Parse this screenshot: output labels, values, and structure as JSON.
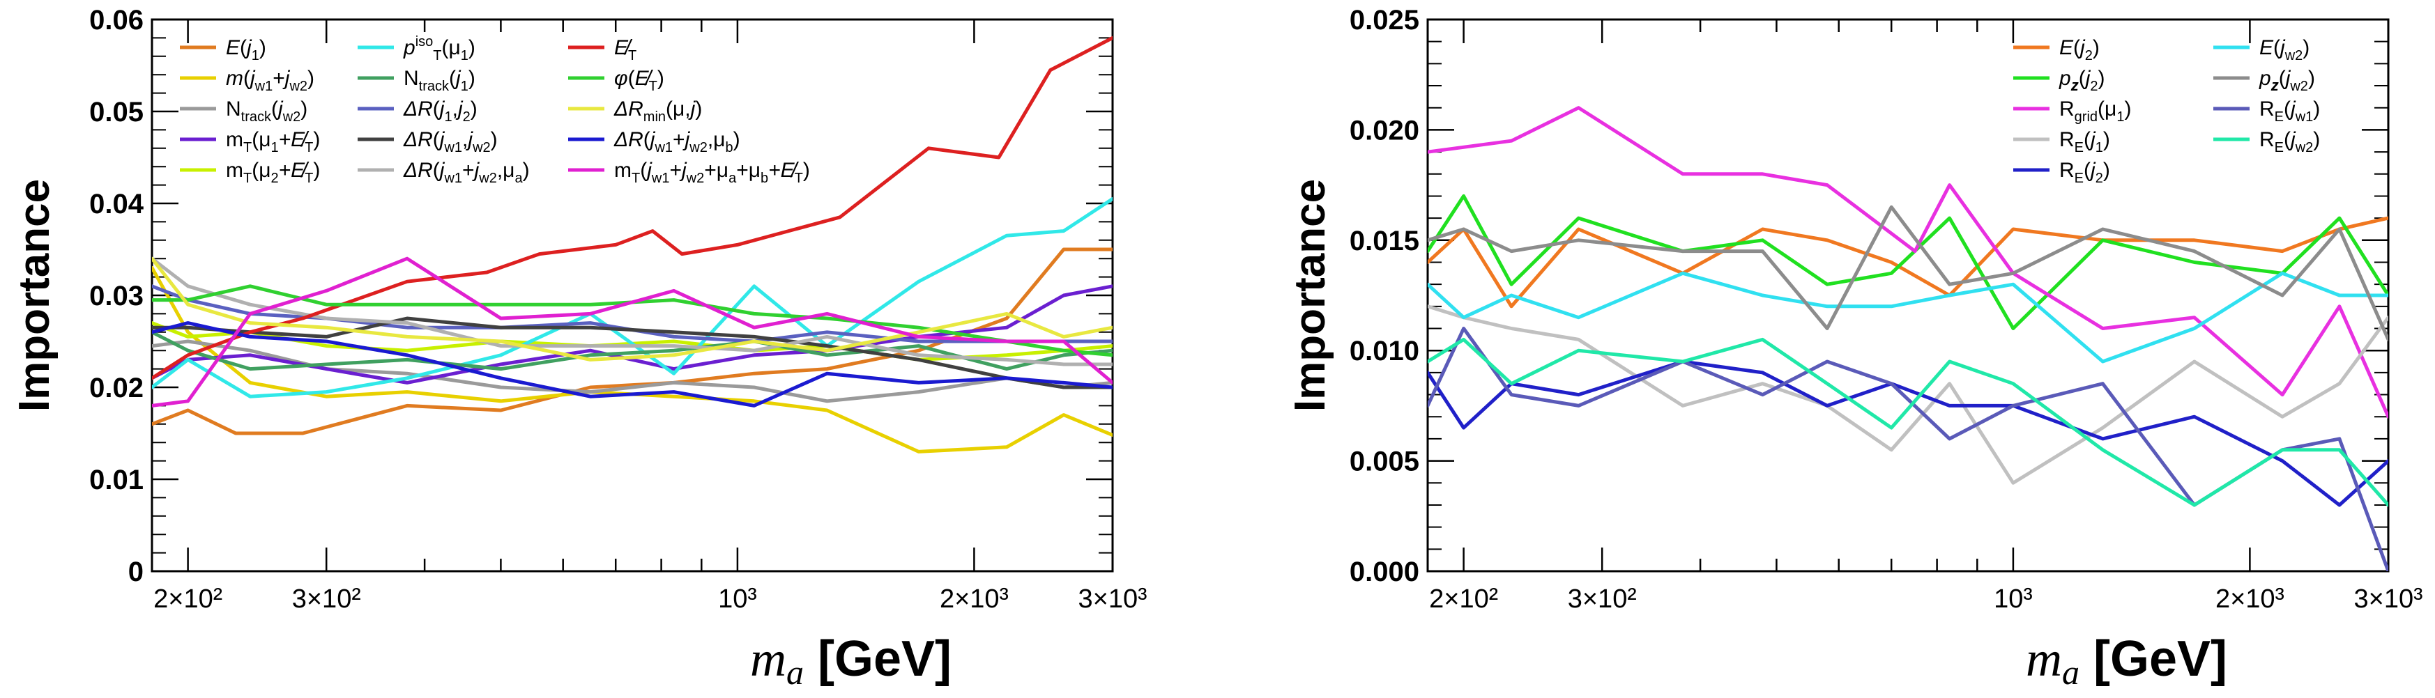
{
  "chart_data": [
    {
      "type": "line",
      "title": "",
      "xlabel": "m_a [GeV]",
      "ylabel": "Importance",
      "xscale": "log",
      "xlim": [
        180,
        3000
      ],
      "ylim": [
        0,
        0.06
      ],
      "yticks": [
        "0",
        "0.01",
        "0.02",
        "0.03",
        "0.04",
        "0.05",
        "0.06"
      ],
      "xticks": [
        {
          "value": 200,
          "label": "2×10²"
        },
        {
          "value": 300,
          "label": "3×10²"
        },
        {
          "value": 1000,
          "label": "10³"
        },
        {
          "value": 2000,
          "label": "2×10³"
        },
        {
          "value": 3000,
          "label": "3×10³"
        }
      ],
      "grid": false,
      "legend": "top-left, 3 columns",
      "series": [
        {
          "name": "E(j1)",
          "color": "#e07b20",
          "x": [
            180,
            200,
            230,
            280,
            380,
            500,
            650,
            830,
            1050,
            1300,
            1700,
            2200,
            2600,
            3000
          ],
          "y": [
            0.016,
            0.0175,
            0.015,
            0.015,
            0.018,
            0.0175,
            0.02,
            0.0205,
            0.0215,
            0.022,
            0.024,
            0.0275,
            0.035,
            0.035
          ]
        },
        {
          "name": "m(jw1+jw2)",
          "color": "#e8d000",
          "x": [
            180,
            200,
            240,
            300,
            380,
            500,
            650,
            830,
            1050,
            1300,
            1700,
            2200,
            2600,
            3000
          ],
          "y": [
            0.033,
            0.026,
            0.0205,
            0.019,
            0.0195,
            0.0185,
            0.0195,
            0.019,
            0.0185,
            0.0175,
            0.013,
            0.0135,
            0.017,
            0.0148
          ]
        },
        {
          "name": "Ntrack(jw2)",
          "color": "#9a9a9a",
          "x": [
            180,
            200,
            240,
            300,
            380,
            500,
            650,
            830,
            1050,
            1300,
            1700,
            2200,
            2600,
            3000
          ],
          "y": [
            0.0245,
            0.025,
            0.024,
            0.022,
            0.0215,
            0.02,
            0.0195,
            0.0205,
            0.02,
            0.0185,
            0.0195,
            0.021,
            0.02,
            0.0205
          ]
        },
        {
          "name": "mT(μ1+E̸T)",
          "color": "#6a1fd0",
          "x": [
            180,
            200,
            240,
            300,
            380,
            500,
            650,
            830,
            1050,
            1300,
            1700,
            2200,
            2600,
            3000
          ],
          "y": [
            0.021,
            0.023,
            0.0235,
            0.022,
            0.0205,
            0.0225,
            0.024,
            0.022,
            0.0235,
            0.024,
            0.0255,
            0.0265,
            0.03,
            0.031
          ]
        },
        {
          "name": "mT(μ2+E̸T)",
          "color": "#c8f000",
          "x": [
            180,
            200,
            240,
            300,
            380,
            500,
            650,
            830,
            1050,
            1300,
            1700,
            2200,
            2600,
            3000
          ],
          "y": [
            0.027,
            0.0255,
            0.026,
            0.0245,
            0.024,
            0.025,
            0.0245,
            0.025,
            0.024,
            0.0245,
            0.023,
            0.0235,
            0.024,
            0.0245
          ]
        },
        {
          "name": "pTiso(μ1)",
          "color": "#30e8e8",
          "x": [
            180,
            200,
            240,
            300,
            380,
            500,
            650,
            830,
            1050,
            1300,
            1700,
            2200,
            2600,
            3000
          ],
          "y": [
            0.02,
            0.023,
            0.019,
            0.0195,
            0.021,
            0.0235,
            0.028,
            0.0215,
            0.031,
            0.0245,
            0.0315,
            0.0365,
            0.037,
            0.0405
          ]
        },
        {
          "name": "Ntrack(j1)",
          "color": "#40a060",
          "x": [
            180,
            200,
            240,
            300,
            380,
            500,
            650,
            830,
            1050,
            1300,
            1700,
            2200,
            2600,
            3000
          ],
          "y": [
            0.026,
            0.024,
            0.022,
            0.0225,
            0.023,
            0.022,
            0.0235,
            0.024,
            0.025,
            0.0235,
            0.0245,
            0.022,
            0.0235,
            0.024
          ]
        },
        {
          "name": "ΔR(j1,j2)",
          "color": "#5a60c0",
          "x": [
            180,
            200,
            240,
            300,
            380,
            500,
            650,
            830,
            1050,
            1300,
            1700,
            2200,
            2600,
            3000
          ],
          "y": [
            0.031,
            0.0295,
            0.028,
            0.0275,
            0.0265,
            0.0265,
            0.027,
            0.0255,
            0.025,
            0.026,
            0.025,
            0.025,
            0.025,
            0.025
          ]
        },
        {
          "name": "ΔR(jw1,jw2)",
          "color": "#404040",
          "x": [
            180,
            200,
            240,
            300,
            380,
            500,
            650,
            830,
            1050,
            1300,
            1700,
            2200,
            2600,
            3000
          ],
          "y": [
            0.0265,
            0.0265,
            0.026,
            0.0255,
            0.0275,
            0.0265,
            0.0265,
            0.026,
            0.0255,
            0.0245,
            0.023,
            0.021,
            0.02,
            0.02
          ]
        },
        {
          "name": "ΔR(jw1+jw2,μa)",
          "color": "#b0b0b0",
          "x": [
            180,
            200,
            240,
            300,
            380,
            500,
            650,
            830,
            1050,
            1300,
            1700,
            2200,
            2600,
            3000
          ],
          "y": [
            0.034,
            0.031,
            0.029,
            0.0275,
            0.027,
            0.0245,
            0.0245,
            0.0245,
            0.024,
            0.0255,
            0.0235,
            0.023,
            0.0225,
            0.0225
          ]
        },
        {
          "name": "E̸T",
          "color": "#dd2020",
          "x": [
            180,
            200,
            240,
            280,
            380,
            480,
            560,
            700,
            780,
            850,
            1000,
            1350,
            1750,
            2150,
            2500,
            3000
          ],
          "y": [
            0.021,
            0.0235,
            0.026,
            0.0275,
            0.0315,
            0.0325,
            0.0345,
            0.0355,
            0.037,
            0.0345,
            0.0355,
            0.0385,
            0.046,
            0.045,
            0.0545,
            0.058
          ]
        },
        {
          "name": "φ(E̸T)",
          "color": "#30d030",
          "x": [
            180,
            200,
            240,
            300,
            380,
            500,
            650,
            830,
            1050,
            1300,
            1700,
            2200,
            2600,
            3000
          ],
          "y": [
            0.0295,
            0.0295,
            0.031,
            0.029,
            0.029,
            0.029,
            0.029,
            0.0295,
            0.028,
            0.0275,
            0.0265,
            0.025,
            0.024,
            0.0235
          ]
        },
        {
          "name": "ΔRmin(μ,j)",
          "color": "#e8e840",
          "x": [
            180,
            200,
            240,
            300,
            380,
            500,
            650,
            830,
            1050,
            1300,
            1700,
            2200,
            2600,
            3000
          ],
          "y": [
            0.034,
            0.029,
            0.027,
            0.0265,
            0.0255,
            0.025,
            0.023,
            0.0235,
            0.025,
            0.024,
            0.026,
            0.028,
            0.0255,
            0.0265
          ]
        },
        {
          "name": "ΔR(jw1+jw2,μb)",
          "color": "#1a1ad0",
          "x": [
            180,
            200,
            240,
            300,
            380,
            500,
            650,
            830,
            1050,
            1300,
            1700,
            2200,
            2600,
            3000
          ],
          "y": [
            0.026,
            0.027,
            0.0255,
            0.025,
            0.0235,
            0.021,
            0.019,
            0.0195,
            0.018,
            0.0215,
            0.0205,
            0.021,
            0.0205,
            0.02
          ]
        },
        {
          "name": "mT(jw1+jw2+μa+μb+E̸T)",
          "color": "#e020d0",
          "x": [
            180,
            200,
            240,
            300,
            380,
            500,
            650,
            830,
            1050,
            1300,
            1700,
            2200,
            2600,
            3000
          ],
          "y": [
            0.018,
            0.0185,
            0.028,
            0.0305,
            0.034,
            0.0275,
            0.028,
            0.0305,
            0.0265,
            0.028,
            0.0255,
            0.025,
            0.025,
            0.0205
          ]
        }
      ]
    },
    {
      "type": "line",
      "title": "",
      "xlabel": "m_a [GeV]",
      "ylabel": "Importance",
      "xscale": "log",
      "xlim": [
        180,
        3000
      ],
      "ylim": [
        0,
        0.025
      ],
      "yticks": [
        "0.000",
        "0.005",
        "0.010",
        "0.015",
        "0.020",
        "0.025"
      ],
      "xticks": [
        {
          "value": 200,
          "label": "2×10²"
        },
        {
          "value": 300,
          "label": "3×10²"
        },
        {
          "value": 1000,
          "label": "10³"
        },
        {
          "value": 2000,
          "label": "2×10³"
        },
        {
          "value": 3000,
          "label": "3×10³"
        }
      ],
      "grid": false,
      "legend": "top-right, 2 columns",
      "series": [
        {
          "name": "E(j2)",
          "color": "#f07820",
          "x": [
            180,
            200,
            230,
            280,
            380,
            480,
            580,
            700,
            830,
            1000,
            1300,
            1700,
            2200,
            2600,
            3000
          ],
          "y": [
            0.014,
            0.0155,
            0.012,
            0.0155,
            0.0135,
            0.0155,
            0.015,
            0.014,
            0.0125,
            0.0155,
            0.015,
            0.015,
            0.0145,
            0.0155,
            0.016
          ]
        },
        {
          "name": "pz(j2)",
          "color": "#20e020",
          "x": [
            180,
            200,
            230,
            280,
            380,
            480,
            580,
            700,
            830,
            1000,
            1300,
            1700,
            2200,
            2600,
            3000
          ],
          "y": [
            0.0145,
            0.017,
            0.013,
            0.016,
            0.0145,
            0.015,
            0.013,
            0.0135,
            0.016,
            0.011,
            0.015,
            0.014,
            0.0135,
            0.016,
            0.0125
          ]
        },
        {
          "name": "Rgrid(μ1)",
          "color": "#e830e0",
          "x": [
            180,
            230,
            280,
            380,
            480,
            580,
            750,
            830,
            1000,
            1300,
            1700,
            2200,
            2600,
            3000
          ],
          "y": [
            0.019,
            0.0195,
            0.021,
            0.018,
            0.018,
            0.0175,
            0.0145,
            0.0175,
            0.0135,
            0.011,
            0.0115,
            0.008,
            0.012,
            0.007
          ]
        },
        {
          "name": "RE(j1)",
          "color": "#c0c0c0",
          "x": [
            180,
            200,
            230,
            280,
            380,
            480,
            580,
            700,
            830,
            1000,
            1300,
            1700,
            2200,
            2600,
            3000
          ],
          "y": [
            0.012,
            0.0115,
            0.011,
            0.0105,
            0.0075,
            0.0085,
            0.0075,
            0.0055,
            0.0085,
            0.004,
            0.0065,
            0.0095,
            0.007,
            0.0085,
            0.0115
          ]
        },
        {
          "name": "RE(j2)",
          "color": "#2020c8",
          "x": [
            180,
            200,
            230,
            280,
            380,
            480,
            580,
            700,
            830,
            1000,
            1300,
            1700,
            2200,
            2600,
            3000
          ],
          "y": [
            0.009,
            0.0065,
            0.0085,
            0.008,
            0.0095,
            0.009,
            0.0075,
            0.0085,
            0.0075,
            0.0075,
            0.006,
            0.007,
            0.005,
            0.003,
            0.005
          ]
        },
        {
          "name": "E(jw2)",
          "color": "#30e0f0",
          "x": [
            180,
            200,
            230,
            280,
            380,
            480,
            580,
            700,
            830,
            1000,
            1300,
            1700,
            2200,
            2600,
            3000
          ],
          "y": [
            0.013,
            0.0115,
            0.0125,
            0.0115,
            0.0135,
            0.0125,
            0.012,
            0.012,
            0.0125,
            0.013,
            0.0095,
            0.011,
            0.0135,
            0.0125,
            0.0125
          ]
        },
        {
          "name": "pz(jw2)",
          "color": "#8c8c8c",
          "x": [
            180,
            200,
            230,
            280,
            380,
            480,
            580,
            700,
            830,
            1000,
            1300,
            1700,
            2200,
            2600,
            3000
          ],
          "y": [
            0.015,
            0.0155,
            0.0145,
            0.015,
            0.0145,
            0.0145,
            0.011,
            0.0165,
            0.013,
            0.0135,
            0.0155,
            0.0145,
            0.0125,
            0.0155,
            0.0105
          ]
        },
        {
          "name": "RE(jw1)",
          "color": "#5a5ab8",
          "x": [
            180,
            200,
            230,
            280,
            380,
            480,
            580,
            700,
            830,
            1000,
            1300,
            1700,
            2200,
            2600,
            3000
          ],
          "y": [
            0.0075,
            0.011,
            0.008,
            0.0075,
            0.0095,
            0.008,
            0.0095,
            0.0085,
            0.006,
            0.0075,
            0.0085,
            0.003,
            0.0055,
            0.006,
            0.0
          ]
        },
        {
          "name": "RE(jw2)",
          "color": "#20e8a8",
          "x": [
            180,
            200,
            230,
            280,
            380,
            480,
            580,
            700,
            830,
            1000,
            1300,
            1700,
            2200,
            2600,
            3000
          ],
          "y": [
            0.0095,
            0.0105,
            0.0085,
            0.01,
            0.0095,
            0.0105,
            0.0085,
            0.0065,
            0.0095,
            0.0085,
            0.0055,
            0.003,
            0.0055,
            0.0055,
            0.003
          ]
        }
      ]
    }
  ]
}
